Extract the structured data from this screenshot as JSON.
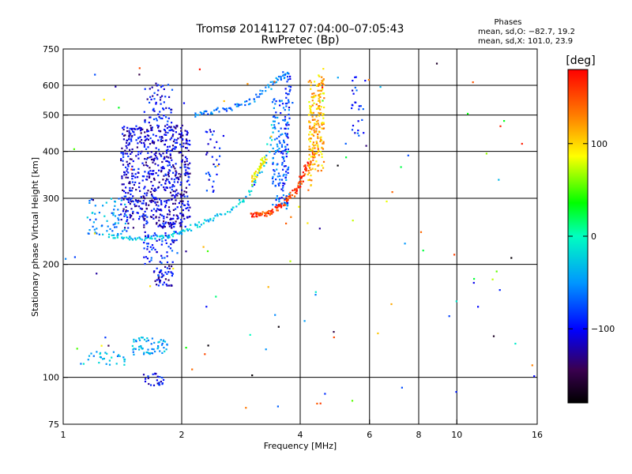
{
  "chart_data": {
    "type": "scatter",
    "title": "Tromsø 20141127 07:04:00–07:05:43",
    "subtitle": "RwPretec (Bp)",
    "xlabel": "Frequency [MHz]",
    "ylabel": "Stationary phase Virtual Height [km]",
    "x_scale": "log",
    "y_scale": "log",
    "xlim": [
      1,
      16
    ],
    "ylim": [
      75,
      750
    ],
    "x_ticks": [
      1,
      2,
      4,
      6,
      8,
      10,
      16
    ],
    "y_ticks": [
      75,
      100,
      200,
      300,
      400,
      500,
      600,
      750
    ],
    "x_gridlines": [
      2,
      4,
      6,
      8,
      10
    ],
    "y_gridlines": [
      100,
      200,
      300,
      400,
      500,
      600
    ],
    "grid": true,
    "colorbar": {
      "label": "[deg]",
      "range": [
        -180,
        180
      ],
      "ticks": [
        {
          "value": 100,
          "label": "100"
        },
        {
          "value": 0,
          "label": "0"
        },
        {
          "value": -100,
          "label": "−100"
        }
      ]
    },
    "stats": {
      "title": "Phases",
      "line_o": "mean, sd,O: −82.7, 19.2",
      "line_x": "mean, sd,X: 101.0, 23.9"
    },
    "traces": [
      {
        "x": [
          1.3,
          1.45,
          1.6,
          1.75,
          1.9,
          2.05,
          2.3,
          2.6,
          2.9,
          3.2,
          3.45
        ],
        "y": [
          238,
          236,
          234,
          236,
          240,
          248,
          260,
          275,
          300,
          355,
          480
        ],
        "phase": -30
      },
      {
        "x": [
          2.15,
          2.4,
          2.7,
          3.0,
          3.3,
          3.55,
          3.72
        ],
        "y": [
          500,
          510,
          525,
          545,
          590,
          630,
          650
        ],
        "phase": -60
      },
      {
        "x": [
          3.0,
          3.15,
          3.3,
          3.5,
          3.65,
          3.8,
          3.95,
          4.05,
          4.2,
          4.4
        ],
        "y": [
          272,
          272,
          273,
          282,
          292,
          305,
          320,
          345,
          370,
          410
        ],
        "phase": 160
      },
      {
        "x": [
          3.6,
          3.65,
          3.7,
          3.72,
          3.74
        ],
        "y": [
          300,
          380,
          460,
          560,
          640
        ],
        "phase": -90
      },
      {
        "x": [
          4.2,
          4.3,
          4.4,
          4.5,
          4.55
        ],
        "y": [
          320,
          380,
          450,
          540,
          630
        ],
        "phase": 120
      },
      {
        "x": [
          3.0,
          3.1,
          3.2,
          3.25
        ],
        "y": [
          330,
          350,
          370,
          385
        ],
        "phase": 90
      }
    ],
    "clusters": [
      {
        "xmin": 1.4,
        "xmax": 2.1,
        "ymin": 250,
        "ymax": 470,
        "phase": -110,
        "n": 700
      },
      {
        "xmin": 1.6,
        "xmax": 1.9,
        "ymin": 470,
        "ymax": 610,
        "phase": -100,
        "n": 60
      },
      {
        "xmin": 1.15,
        "xmax": 1.45,
        "ymin": 240,
        "ymax": 300,
        "phase": -50,
        "n": 60
      },
      {
        "xmin": 1.7,
        "xmax": 1.9,
        "ymin": 175,
        "ymax": 200,
        "phase": -110,
        "n": 50
      },
      {
        "xmin": 1.6,
        "xmax": 1.95,
        "ymin": 200,
        "ymax": 245,
        "phase": -90,
        "n": 60
      },
      {
        "xmin": 1.5,
        "xmax": 1.85,
        "ymin": 115,
        "ymax": 128,
        "phase": -40,
        "n": 60
      },
      {
        "xmin": 1.1,
        "xmax": 1.45,
        "ymin": 108,
        "ymax": 118,
        "phase": -40,
        "n": 30
      },
      {
        "xmin": 1.6,
        "xmax": 1.8,
        "ymin": 95,
        "ymax": 103,
        "phase": -100,
        "n": 25
      },
      {
        "xmin": 3.4,
        "xmax": 3.75,
        "ymin": 280,
        "ymax": 560,
        "phase": -70,
        "n": 120
      },
      {
        "xmin": 4.2,
        "xmax": 4.6,
        "ymin": 350,
        "ymax": 640,
        "phase": 110,
        "n": 150
      },
      {
        "xmin": 5.4,
        "xmax": 5.8,
        "ymin": 440,
        "ymax": 640,
        "phase": -90,
        "n": 25
      },
      {
        "xmin": 2.3,
        "xmax": 2.5,
        "ymin": 300,
        "ymax": 460,
        "phase": -90,
        "n": 30
      },
      {
        "xmin": 1.0,
        "xmax": 16,
        "ymin": 80,
        "ymax": 700,
        "phase": 0,
        "n": 110
      }
    ]
  }
}
